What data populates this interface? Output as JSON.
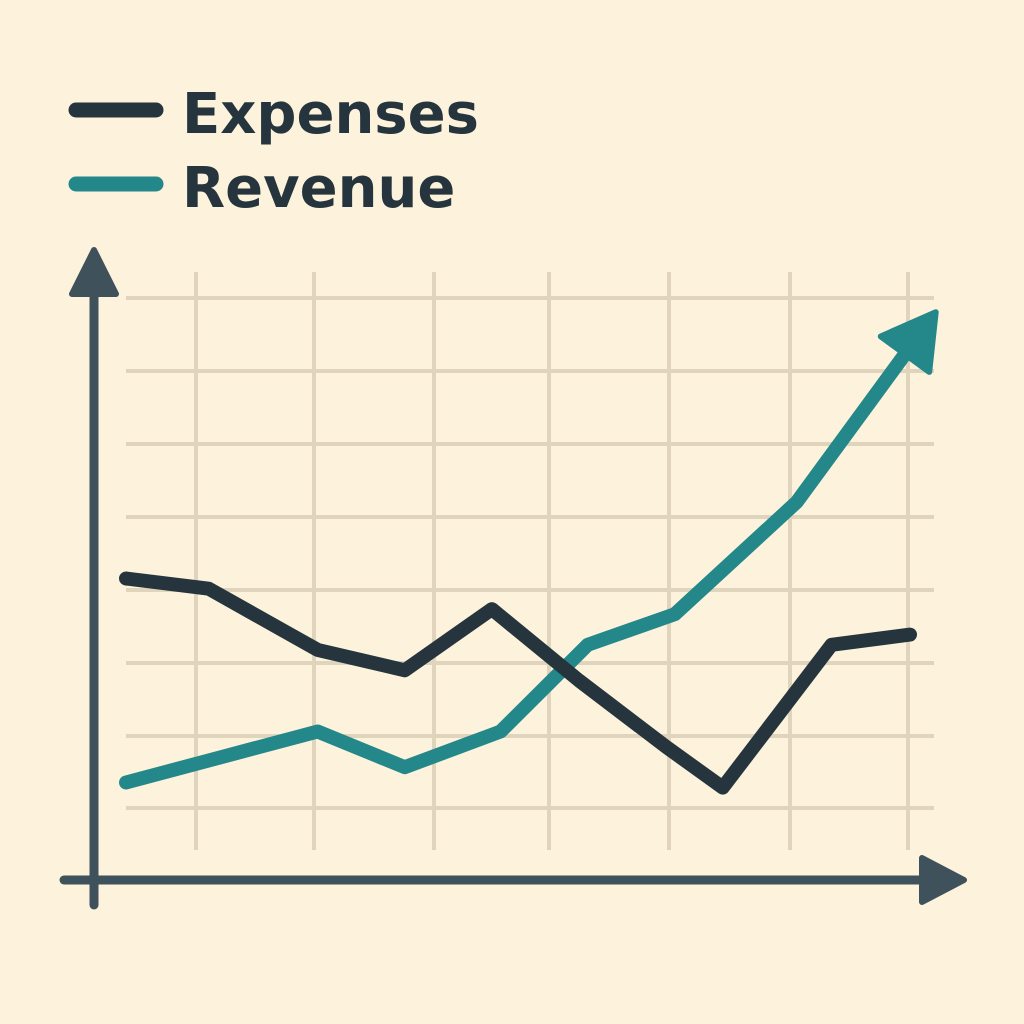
{
  "chart_data": {
    "type": "line",
    "title": "",
    "xlabel": "",
    "ylabel": "",
    "x": [
      0,
      1,
      2,
      3,
      4,
      5,
      6,
      7,
      8,
      9
    ],
    "xlim": [
      0,
      9
    ],
    "ylim": [
      0,
      100
    ],
    "grid": true,
    "legend_position": "top-left",
    "series": [
      {
        "name": "Expenses",
        "color": "#26353d",
        "values": [
          45,
          43,
          31,
          27,
          39,
          25,
          12,
          4,
          32,
          34
        ],
        "x": [
          0,
          0.95,
          2.2,
          3.2,
          4.2,
          5.2,
          6.2,
          6.85,
          8.1,
          9
        ]
      },
      {
        "name": "Revenue",
        "color": "#24878a",
        "values": [
          5,
          10,
          15,
          8,
          15,
          32,
          38,
          60,
          95
        ],
        "x": [
          0,
          1.1,
          2.2,
          3.2,
          4.3,
          5.3,
          6.3,
          7.7,
          9.2
        ],
        "arrow_end": true
      }
    ]
  },
  "colors": {
    "background": "#fdf3dc",
    "grid": "#e0d5bc",
    "axis": "#3f515a"
  }
}
